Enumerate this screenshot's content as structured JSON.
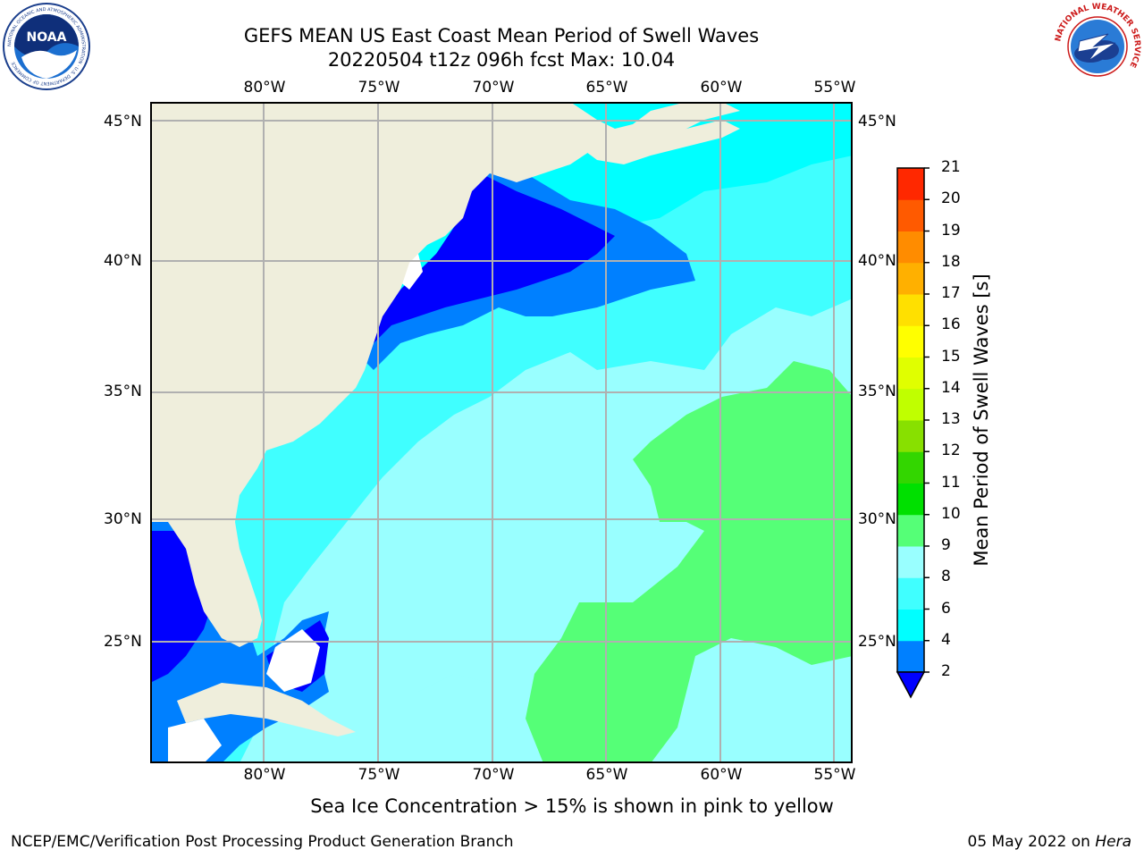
{
  "title": {
    "line1": "GEFS MEAN US East Coast Mean Period of Swell Waves",
    "line2": "20220504 t12z 096h fcst   Max: 10.04"
  },
  "logos": {
    "left": {
      "name": "noaa-logo",
      "text": "NOAA",
      "ring_text": "NATIONAL OCEANIC AND ATMOSPHERIC ADMINISTRATION · U.S. DEPARTMENT OF COMMERCE"
    },
    "right": {
      "name": "nws-logo",
      "ring_text": "NATIONAL WEATHER SERVICE"
    }
  },
  "map": {
    "lon_labels": [
      "80°W",
      "75°W",
      "70°W",
      "65°W",
      "60°W",
      "55°W"
    ],
    "lat_labels": [
      "45°N",
      "40°N",
      "35°N",
      "30°N",
      "25°N"
    ],
    "lat_labels_right": [
      "45°N",
      "40°N",
      "35°N",
      "30°N",
      "25°N"
    ],
    "colors": {
      "land": "#efeedc",
      "c2_4": "#0080ff",
      "c4_6": "#00ffff",
      "c6_8": "#40ffff",
      "c8_9": "#99ffff",
      "c9_10": "#55ff77",
      "below2": "#0000ff",
      "grid": "#b0b0b0"
    }
  },
  "colorbar": {
    "label": "Mean Period of Swell Waves [s]",
    "ticks": [
      "2",
      "4",
      "6",
      "8",
      "9",
      "10",
      "11",
      "12",
      "13",
      "14",
      "15",
      "16",
      "17",
      "18",
      "19",
      "20",
      "21"
    ],
    "colors": [
      "#0080ff",
      "#00ffff",
      "#40ffff",
      "#99ffff",
      "#55ff77",
      "#00e000",
      "#33d600",
      "#88e000",
      "#c0ff00",
      "#e0ff00",
      "#ffff00",
      "#ffe000",
      "#ffb000",
      "#ff8c00",
      "#ff5a00",
      "#ff2800"
    ]
  },
  "note": "Sea Ice Concentration > 15% is shown in pink to yellow",
  "footer": {
    "left": "NCEP/EMC/Verification Post Processing Product Generation Branch",
    "date": "05 May 2022 on ",
    "host": "Hera"
  }
}
